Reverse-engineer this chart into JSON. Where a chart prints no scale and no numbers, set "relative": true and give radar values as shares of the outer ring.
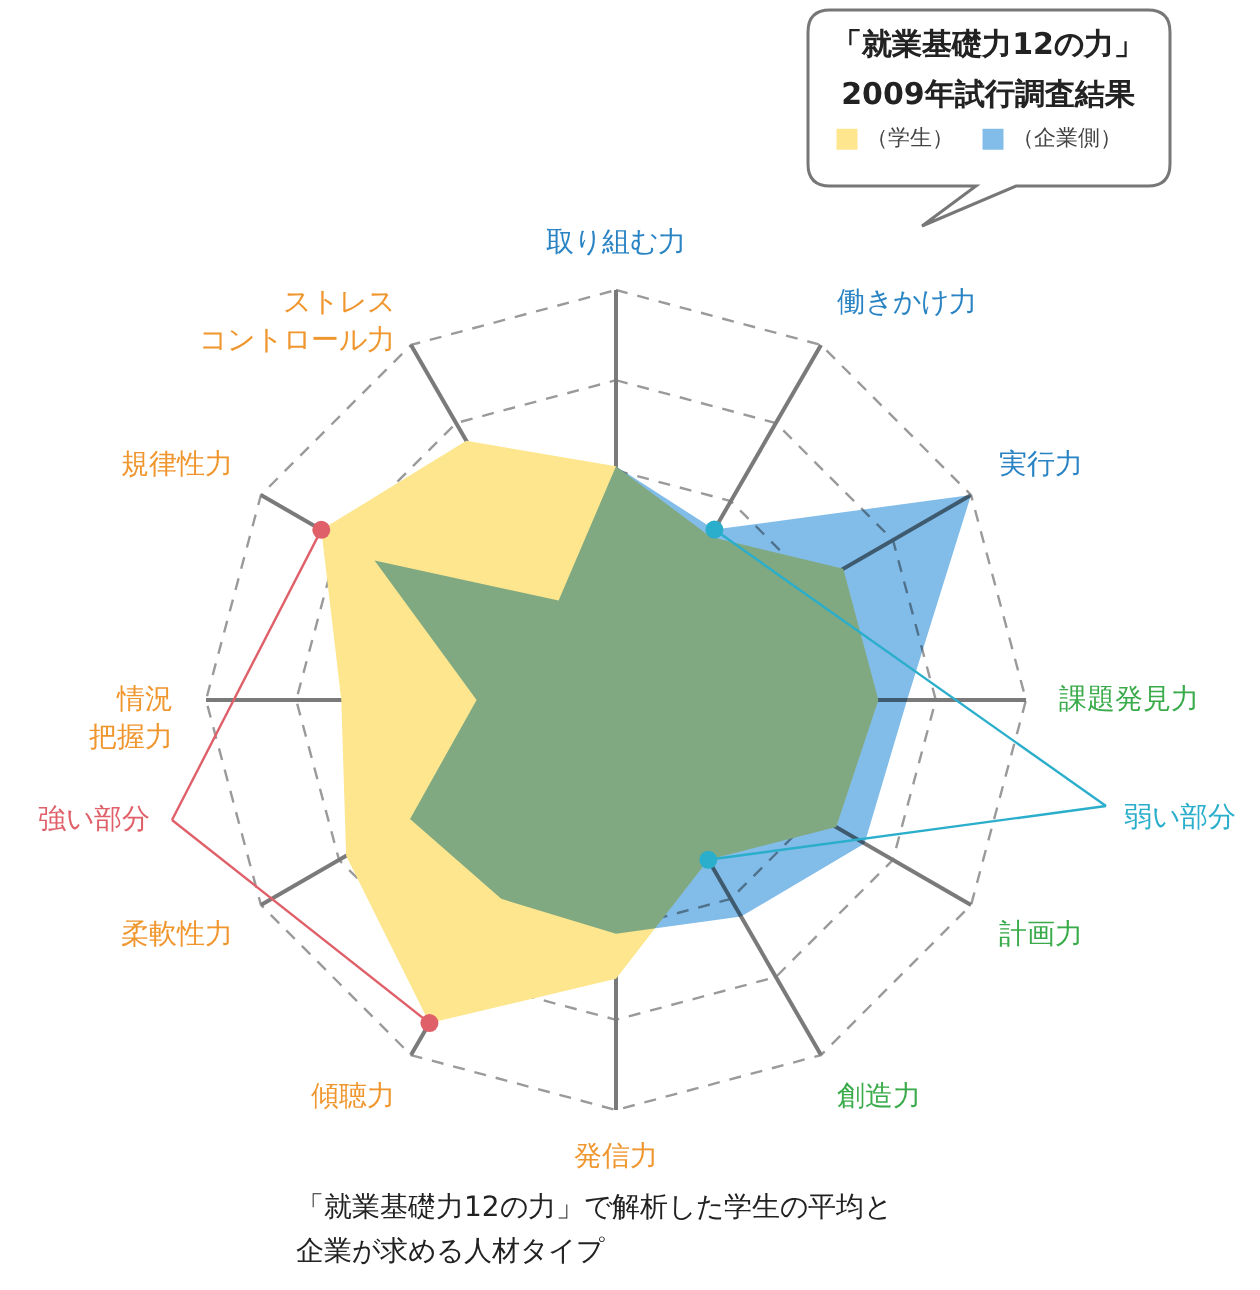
{
  "chart_data": {
    "type": "radar",
    "title": "「就業基礎力12の力」",
    "subtitle": "2009年試行調査結果",
    "categories": [
      "取り組む力",
      "働きかけ力",
      "実行力",
      "課題発見力",
      "計画力",
      "創造力",
      "発信力",
      "傾聴力",
      "柔軟性力",
      "情況把握力",
      "規律性力",
      "ストレスコントロール力"
    ],
    "relative": true,
    "series": [
      {
        "name": "（学生）",
        "color": "#fde68e",
        "values": [
          0.57,
          0.46,
          0.64,
          0.64,
          0.62,
          0.45,
          0.68,
          0.91,
          0.76,
          0.67,
          0.83,
          0.73
        ]
      },
      {
        "name": "（企業側）",
        "color": "#82bce8",
        "values": [
          0.57,
          0.48,
          1.0,
          0.71,
          0.7,
          0.61,
          0.57,
          0.56,
          0.58,
          0.34,
          0.68,
          0.28
        ]
      }
    ],
    "legend": "top right",
    "grid": true,
    "annotations": [
      "強い部分",
      "弱い部分",
      "「就業基礎力12の力」で解析した学生の平均と企業が求める人材タイプ"
    ]
  }
}
